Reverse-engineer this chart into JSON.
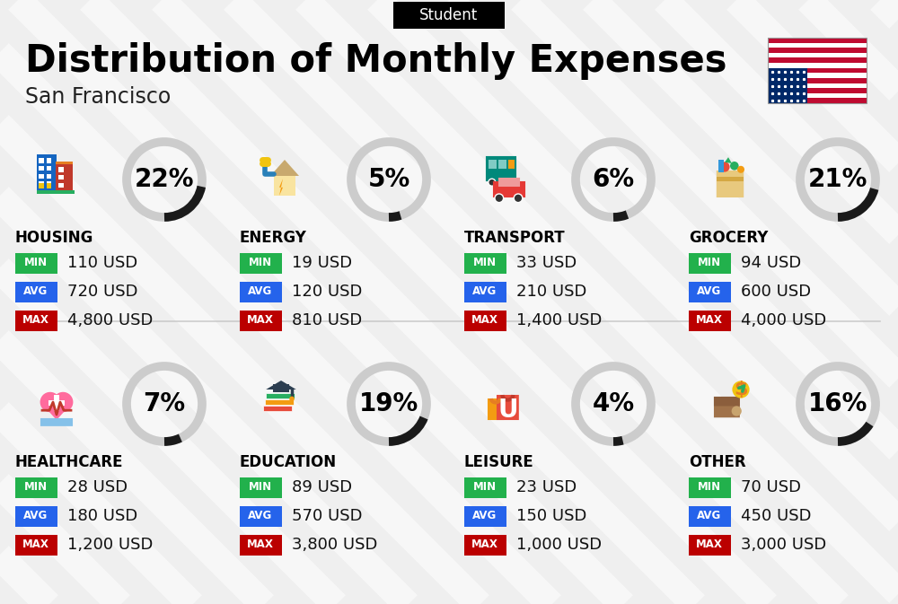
{
  "title": "Distribution of Monthly Expenses",
  "subtitle": "San Francisco",
  "label_tag": "Student",
  "bg_color": "#efefef",
  "categories": [
    {
      "name": "HOUSING",
      "pct": 22,
      "min": "110 USD",
      "avg": "720 USD",
      "max": "4,800 USD",
      "row": 0,
      "col": 0
    },
    {
      "name": "ENERGY",
      "pct": 5,
      "min": "19 USD",
      "avg": "120 USD",
      "max": "810 USD",
      "row": 0,
      "col": 1
    },
    {
      "name": "TRANSPORT",
      "pct": 6,
      "min": "33 USD",
      "avg": "210 USD",
      "max": "1,400 USD",
      "row": 0,
      "col": 2
    },
    {
      "name": "GROCERY",
      "pct": 21,
      "min": "94 USD",
      "avg": "600 USD",
      "max": "4,000 USD",
      "row": 0,
      "col": 3
    },
    {
      "name": "HEALTHCARE",
      "pct": 7,
      "min": "28 USD",
      "avg": "180 USD",
      "max": "1,200 USD",
      "row": 1,
      "col": 0
    },
    {
      "name": "EDUCATION",
      "pct": 19,
      "min": "89 USD",
      "avg": "570 USD",
      "max": "3,800 USD",
      "row": 1,
      "col": 1
    },
    {
      "name": "LEISURE",
      "pct": 4,
      "min": "23 USD",
      "avg": "150 USD",
      "max": "1,000 USD",
      "row": 1,
      "col": 2
    },
    {
      "name": "OTHER",
      "pct": 16,
      "min": "70 USD",
      "avg": "450 USD",
      "max": "3,000 USD",
      "row": 1,
      "col": 3
    }
  ],
  "min_color": "#22b14c",
  "avg_color": "#2563eb",
  "max_color": "#bb0000",
  "title_fontsize": 30,
  "subtitle_fontsize": 17,
  "cat_fontsize": 12,
  "val_fontsize": 13,
  "pct_fontsize": 20
}
